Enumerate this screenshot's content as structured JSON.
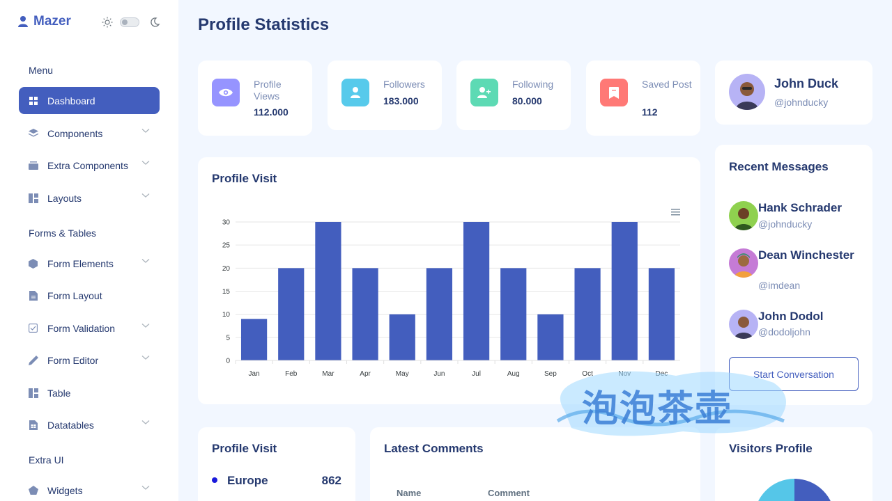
{
  "brand": {
    "name": "Mazer"
  },
  "sidebar": {
    "sections": [
      {
        "title": "Menu"
      },
      {
        "title": "Forms & Tables"
      },
      {
        "title": "Extra UI"
      }
    ],
    "items": [
      {
        "label": "Dashboard",
        "icon": "grid-icon"
      },
      {
        "label": "Components",
        "icon": "stack-icon"
      },
      {
        "label": "Extra Components",
        "icon": "collection-icon"
      },
      {
        "label": "Layouts",
        "icon": "layout-icon"
      },
      {
        "label": "Form Elements",
        "icon": "hexagon-icon"
      },
      {
        "label": "Form Layout",
        "icon": "file-text-icon"
      },
      {
        "label": "Form Validation",
        "icon": "check-square-icon"
      },
      {
        "label": "Form Editor",
        "icon": "pen-icon"
      },
      {
        "label": "Table",
        "icon": "table-icon"
      },
      {
        "label": "Datatables",
        "icon": "file-spreadsheet-icon"
      },
      {
        "label": "Widgets",
        "icon": "pentagon-icon"
      }
    ]
  },
  "header": {
    "title": "Profile Statistics"
  },
  "stats": [
    {
      "label": "Profile Views",
      "value": "112.000",
      "color": "#9694ff",
      "icon": "eye-icon"
    },
    {
      "label": "Followers",
      "value": "183.000",
      "color": "#57caeb",
      "icon": "person-icon"
    },
    {
      "label": "Following",
      "value": "80.000",
      "color": "#5ddab4",
      "icon": "person-plus-icon"
    },
    {
      "label": "Saved Post",
      "value": "112",
      "color": "#ff7976",
      "icon": "bookmark-icon"
    }
  ],
  "profile": {
    "name": "John Duck",
    "handle": "@johnducky"
  },
  "profile_visit_chart": {
    "title": "Profile Visit"
  },
  "chart_data": {
    "type": "bar",
    "title": "Profile Visit",
    "categories": [
      "Jan",
      "Feb",
      "Mar",
      "Apr",
      "May",
      "Jun",
      "Jul",
      "Aug",
      "Sep",
      "Oct",
      "Nov",
      "Dec"
    ],
    "values": [
      9,
      20,
      30,
      20,
      10,
      20,
      30,
      20,
      10,
      20,
      30,
      20
    ],
    "ylim": [
      0,
      30
    ],
    "yticks": [
      0,
      5,
      10,
      15,
      20,
      25,
      30
    ],
    "grid": true,
    "color": "#435ebe"
  },
  "recent_messages": {
    "title": "Recent Messages",
    "items": [
      {
        "name": "Hank Schrader",
        "handle": "@johnducky"
      },
      {
        "name": "Dean Winchester",
        "handle": "@imdean"
      },
      {
        "name": "John Dodol",
        "handle": "@dodoljohn"
      }
    ],
    "button_label": "Start Conversation"
  },
  "profile_visit_list": {
    "title": "Profile Visit",
    "items": [
      {
        "label": "Europe",
        "value": "862"
      }
    ]
  },
  "latest_comments": {
    "title": "Latest Comments",
    "columns": [
      "Name",
      "Comment"
    ]
  },
  "visitors_profile": {
    "title": "Visitors Profile"
  },
  "watermark": {
    "text": "泡泡茶壶"
  }
}
